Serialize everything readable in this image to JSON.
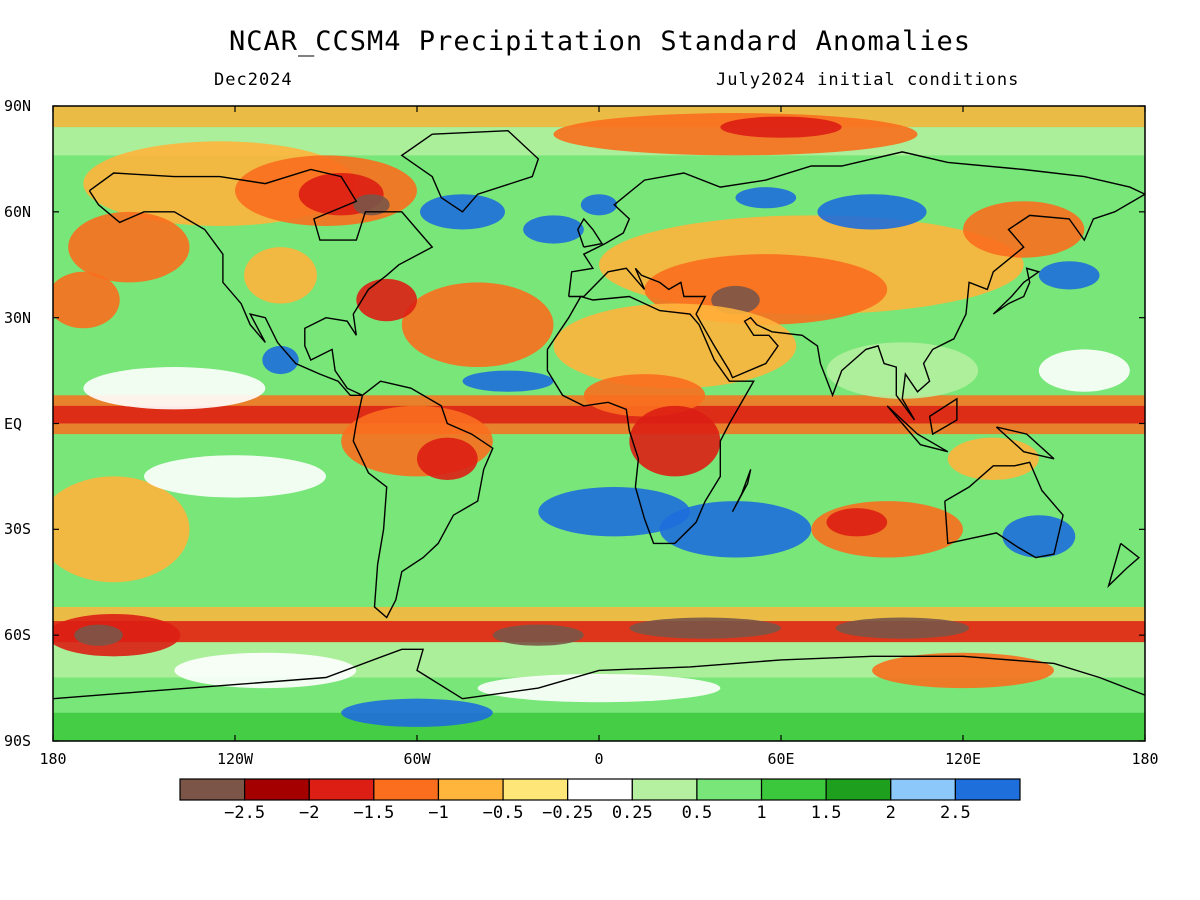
{
  "header": {
    "title": "NCAR_CCSM4 Precipitation Standard Anomalies",
    "valid_month": "Dec2024",
    "init_text": "July2024 initial conditions"
  },
  "axes": {
    "lat_labels": [
      "90N",
      "60N",
      "30N",
      "EQ",
      "30S",
      "60S",
      "90S"
    ],
    "lat_values": [
      90,
      60,
      30,
      0,
      -30,
      -60,
      -90
    ],
    "lon_labels": [
      "180",
      "120W",
      "60W",
      "0",
      "60E",
      "120E",
      "180"
    ],
    "lon_values": [
      -180,
      -120,
      -60,
      0,
      60,
      120,
      180
    ]
  },
  "colorbar": {
    "colors": [
      "#7a5548",
      "#a40000",
      "#dc1e14",
      "#fa6e1e",
      "#ffb43c",
      "#ffe678",
      "#ffffff",
      "#b4f0a0",
      "#78e678",
      "#3cc83c",
      "#1ea01e",
      "#8cc8fa",
      "#1e6edc"
    ],
    "labels": [
      "−2.5",
      "−2",
      "−1.5",
      "−1",
      "−0.5",
      "−0.25",
      "0.25",
      "0.5",
      "1",
      "1.5",
      "2",
      "2.5"
    ]
  },
  "colors": {
    "strong_dry": "#7a5548",
    "dry": "#dc1e14",
    "moderate_dry": "#fa6e1e",
    "slight_dry": "#ffb43c",
    "near_normal": "#ffffff",
    "slight_wet": "#b4f0a0",
    "wet": "#3cc83c",
    "strong_wet": "#1e6edc"
  }
}
